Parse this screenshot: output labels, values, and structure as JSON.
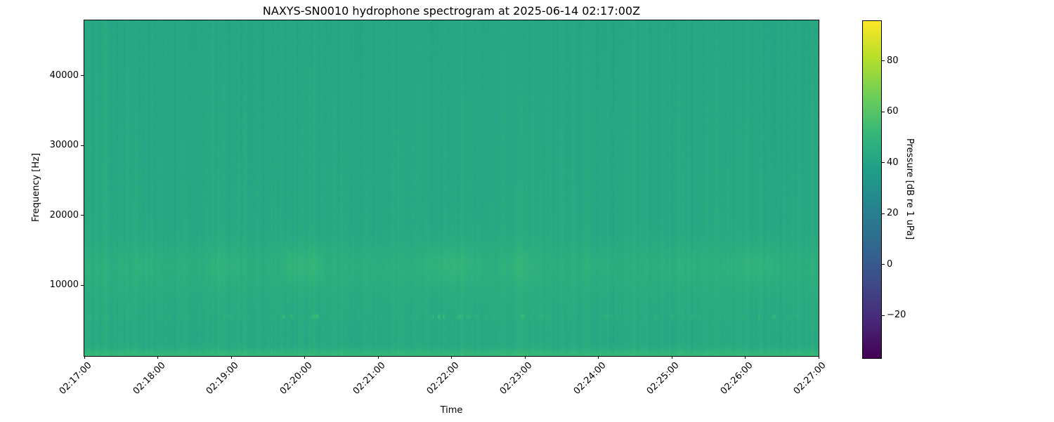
{
  "chart_data": {
    "type": "heatmap",
    "title": "NAXYS-SN0010 hydrophone spectrogram at 2025-06-14 02:17:00Z",
    "xlabel": "Time",
    "ylabel": "Frequency [Hz]",
    "x_tick_labels": [
      "02:17:00",
      "02:18:00",
      "02:19:00",
      "02:20:00",
      "02:21:00",
      "02:22:00",
      "02:23:00",
      "02:24:00",
      "02:25:00",
      "02:26:00",
      "02:27:00"
    ],
    "y_ticks": {
      "values": [
        40000,
        30000,
        20000,
        10000
      ],
      "labels": [
        "40000",
        "30000",
        "20000",
        "10000"
      ]
    },
    "ylim": [
      0,
      48000
    ],
    "time_span": {
      "start": "02:17:00",
      "end": "02:27:00",
      "minutes": 10
    },
    "grid": false,
    "colormap": "viridis",
    "colormap_stops": [
      "#440154",
      "#482878",
      "#3e4a89",
      "#31688e",
      "#26828e",
      "#1f9e89",
      "#35b779",
      "#6ece58",
      "#b5de2b",
      "#fde725"
    ],
    "colorbar": {
      "label": "Pressure [dB re 1 uPa]",
      "tick_values": [
        80,
        60,
        40,
        20,
        0,
        -20
      ],
      "tick_labels": [
        "80",
        "60",
        "40",
        "20",
        "0",
        "−20"
      ],
      "vmin": -37,
      "vmax": 96
    },
    "spectrogram_features": {
      "background_db": 43.8,
      "background_tilt_db": 1.3,
      "striation_db": 1.3,
      "stripe_db": 2.0,
      "stripe_atten_start_hz": 16000,
      "low_strip": {
        "max_freq_hz": 1500,
        "boost_db": 9
      },
      "mid_band": {
        "center_hz": 13000,
        "sigma_hz": 1900,
        "boost_db": 4.2
      },
      "mid_band_wide": {
        "center_hz": 10800,
        "sigma_hz": 3300,
        "boost_db": 1.3
      },
      "tonal_line": {
        "center_hz": 5650,
        "sigma_hz": 240,
        "max_boost_db": 29,
        "pattern": "intermittent dashes"
      },
      "seed": 42
    }
  }
}
